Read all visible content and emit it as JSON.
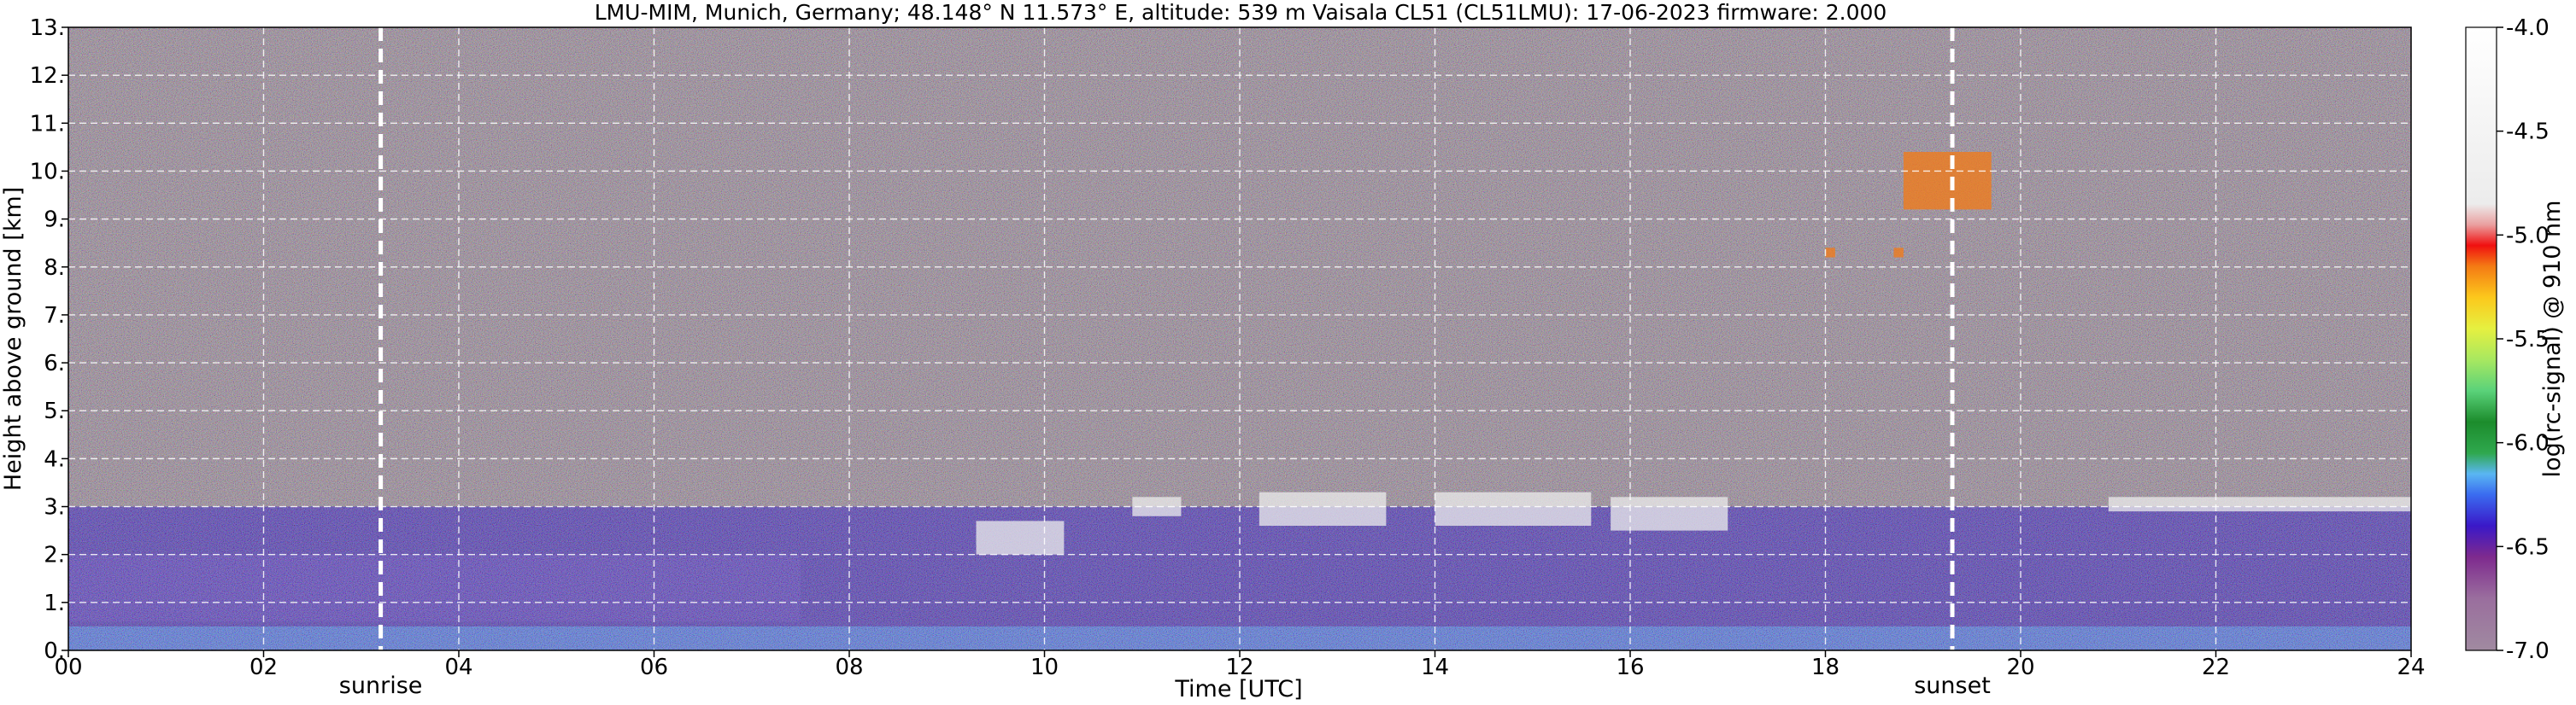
{
  "title": "LMU-MIM, Munich, Germany; 48.148° N 11.573° E, altitude: 539 m    Vaisala CL51 (CL51LMU): 17-06-2023    firmware: 2.000",
  "chart_data": {
    "type": "heatmap",
    "xlabel": "Time [UTC]",
    "ylabel": "Height above ground [km]",
    "xlim": [
      0,
      24
    ],
    "ylim": [
      0,
      13
    ],
    "x_ticks": [
      {
        "value": 0,
        "label": "00"
      },
      {
        "value": 2,
        "label": "02"
      },
      {
        "value": 4,
        "label": "04"
      },
      {
        "value": 6,
        "label": "06"
      },
      {
        "value": 8,
        "label": "08"
      },
      {
        "value": 10,
        "label": "10"
      },
      {
        "value": 12,
        "label": "12"
      },
      {
        "value": 14,
        "label": "14"
      },
      {
        "value": 16,
        "label": "16"
      },
      {
        "value": 18,
        "label": "18"
      },
      {
        "value": 20,
        "label": "20"
      },
      {
        "value": 22,
        "label": "22"
      },
      {
        "value": 24,
        "label": "24"
      }
    ],
    "y_ticks": [
      {
        "value": 0,
        "label": "0."
      },
      {
        "value": 1,
        "label": "1."
      },
      {
        "value": 2,
        "label": "2."
      },
      {
        "value": 3,
        "label": "3."
      },
      {
        "value": 4,
        "label": "4."
      },
      {
        "value": 5,
        "label": "5."
      },
      {
        "value": 6,
        "label": "6."
      },
      {
        "value": 7,
        "label": "7."
      },
      {
        "value": 8,
        "label": "8."
      },
      {
        "value": 9,
        "label": "9."
      },
      {
        "value": 10,
        "label": "10."
      },
      {
        "value": 11,
        "label": "11."
      },
      {
        "value": 12,
        "label": "12."
      },
      {
        "value": 13,
        "label": "13."
      }
    ],
    "grid": true,
    "markers": [
      {
        "label": "sunrise",
        "time": 3.2
      },
      {
        "label": "sunset",
        "time": 19.3
      }
    ],
    "colorbar": {
      "label": "log(rc-signal) @ 910 nm",
      "range": [
        -7.0,
        -4.0
      ],
      "ticks": [
        {
          "value": -4.0,
          "label": "-4.0"
        },
        {
          "value": -4.5,
          "label": "-4.5"
        },
        {
          "value": -5.0,
          "label": "-5.0"
        },
        {
          "value": -5.5,
          "label": "-5.5"
        },
        {
          "value": -6.0,
          "label": "-6.0"
        },
        {
          "value": -6.5,
          "label": "-6.5"
        },
        {
          "value": -7.0,
          "label": "-7.0"
        }
      ],
      "stops": [
        {
          "value": -7.0,
          "color": "#a08aa0"
        },
        {
          "value": -6.75,
          "color": "#9a6e9e"
        },
        {
          "value": -6.55,
          "color": "#7e2a8e"
        },
        {
          "value": -6.4,
          "color": "#3a18c8"
        },
        {
          "value": -6.25,
          "color": "#3a6cf0"
        },
        {
          "value": -6.15,
          "color": "#5ab6f2"
        },
        {
          "value": -6.05,
          "color": "#2fa84e"
        },
        {
          "value": -5.9,
          "color": "#1c8c2c"
        },
        {
          "value": -5.75,
          "color": "#5ad27a"
        },
        {
          "value": -5.6,
          "color": "#a8e860"
        },
        {
          "value": -5.45,
          "color": "#e6f040"
        },
        {
          "value": -5.3,
          "color": "#fcc81c"
        },
        {
          "value": -5.15,
          "color": "#f47a14"
        },
        {
          "value": -5.05,
          "color": "#f01010"
        },
        {
          "value": -4.95,
          "color": "#eaa0a0"
        },
        {
          "value": -4.85,
          "color": "#ececec"
        },
        {
          "value": -4.0,
          "color": "#ffffff"
        }
      ]
    },
    "layers": [
      {
        "name": "background-noise",
        "height_range": [
          3.0,
          13.0
        ],
        "time_range": [
          0,
          24
        ],
        "value": -6.8
      },
      {
        "name": "residual-layer",
        "height_range": [
          0.6,
          2.0
        ],
        "time_range": [
          0,
          7.5
        ],
        "value": -6.55
      },
      {
        "name": "boundary-layer",
        "height_range": [
          0.0,
          3.0
        ],
        "time_range": [
          0,
          24
        ],
        "value": -6.3
      },
      {
        "name": "near-surface",
        "height_range": [
          0.0,
          0.5
        ],
        "time_range": [
          0,
          24
        ],
        "value": -6.2
      }
    ],
    "clouds": [
      {
        "time_range": [
          9.3,
          10.2
        ],
        "height_range": [
          2.0,
          2.7
        ],
        "value": -4.8
      },
      {
        "time_range": [
          10.9,
          11.4
        ],
        "height_range": [
          2.8,
          3.2
        ],
        "value": -4.8
      },
      {
        "time_range": [
          12.2,
          13.5
        ],
        "height_range": [
          2.6,
          3.3
        ],
        "value": -4.8
      },
      {
        "time_range": [
          14.0,
          15.6
        ],
        "height_range": [
          2.6,
          3.3
        ],
        "value": -4.8
      },
      {
        "time_range": [
          15.8,
          17.0
        ],
        "height_range": [
          2.5,
          3.2
        ],
        "value": -4.8
      },
      {
        "time_range": [
          20.9,
          24.0
        ],
        "height_range": [
          2.9,
          3.2
        ],
        "value": -4.8
      },
      {
        "time_range": [
          18.8,
          19.7
        ],
        "height_range": [
          9.2,
          10.4
        ],
        "value": -5.1
      },
      {
        "time_range": [
          18.0,
          18.1
        ],
        "height_range": [
          8.2,
          8.4
        ],
        "value": -5.1
      },
      {
        "time_range": [
          18.7,
          18.8
        ],
        "height_range": [
          8.2,
          8.4
        ],
        "value": -5.1
      }
    ]
  }
}
